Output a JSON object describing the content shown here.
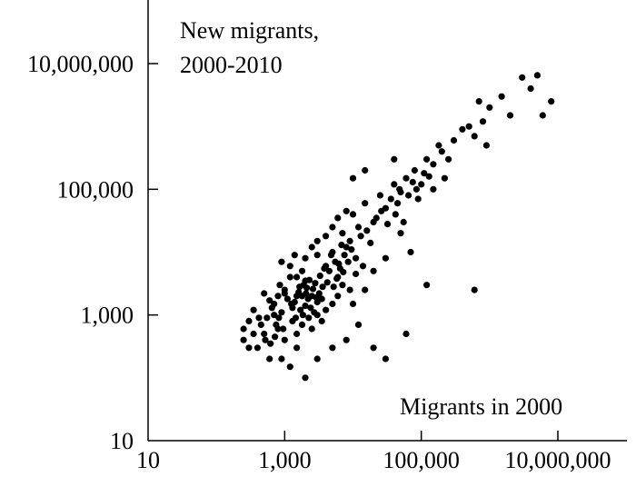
{
  "chart_data": {
    "type": "scatter",
    "scale": {
      "x": "log10",
      "y": "log10"
    },
    "xlim": [
      10,
      10000000
    ],
    "ylim": [
      10,
      10000000
    ],
    "x_ticks": [
      {
        "value": 10,
        "label": "10"
      },
      {
        "value": 1000,
        "label": "1,000"
      },
      {
        "value": 100000,
        "label": "100,000"
      },
      {
        "value": 10000000,
        "label": "10,000,000"
      }
    ],
    "y_ticks": [
      {
        "value": 10,
        "label": "10"
      },
      {
        "value": 1000,
        "label": "1,000"
      },
      {
        "value": 100000,
        "label": "100,000"
      },
      {
        "value": 10000000,
        "label": "10,000,000"
      }
    ],
    "ylabel_lines": [
      "New migrants,",
      "2000-2010"
    ],
    "xlabel": "Migrants in 2000",
    "grid": false,
    "marker_color": "#000000",
    "points": [
      [
        500,
        500
      ],
      [
        600,
        200
      ],
      [
        300,
        800
      ],
      [
        400,
        300
      ],
      [
        250,
        400
      ],
      [
        700,
        1500
      ],
      [
        550,
        900
      ],
      [
        800,
        600
      ],
      [
        1000,
        400
      ],
      [
        900,
        200
      ],
      [
        1200,
        150
      ],
      [
        1500,
        300
      ],
      [
        2000,
        100
      ],
      [
        3000,
        200
      ],
      [
        5000,
        300
      ],
      [
        8000,
        400
      ],
      [
        12000,
        700
      ],
      [
        20000,
        300
      ],
      [
        30000,
        200
      ],
      [
        60000,
        500
      ],
      [
        120000,
        3000
      ],
      [
        600000,
        2500
      ],
      [
        1000,
        2500
      ],
      [
        1200,
        6000
      ],
      [
        1500,
        4000
      ],
      [
        1300,
        800
      ],
      [
        2000,
        3500
      ],
      [
        2500,
        12000
      ],
      [
        3000,
        9000
      ],
      [
        4000,
        6000
      ],
      [
        3500,
        800
      ],
      [
        5000,
        10000
      ],
      [
        6000,
        4000
      ],
      [
        7000,
        20000
      ],
      [
        8000,
        12000
      ],
      [
        10000,
        40000
      ],
      [
        12000,
        25000
      ],
      [
        15000,
        60000
      ],
      [
        20000,
        30000
      ],
      [
        25000,
        80000
      ],
      [
        30000,
        50000
      ],
      [
        40000,
        120000
      ],
      [
        50000,
        90000
      ],
      [
        60000,
        150000
      ],
      [
        80000,
        200000
      ],
      [
        100000,
        120000
      ],
      [
        120000,
        300000
      ],
      [
        150000,
        250000
      ],
      [
        200000,
        400000
      ],
      [
        250000,
        300000
      ],
      [
        300000,
        600000
      ],
      [
        400000,
        900000
      ],
      [
        500000,
        1000000
      ],
      [
        600000,
        700000
      ],
      [
        800000,
        1200000
      ],
      [
        3000000,
        6000000
      ],
      [
        4000000,
        4000000
      ],
      [
        5000000,
        6500000
      ],
      [
        6000000,
        1500000
      ],
      [
        8000000,
        2500000
      ],
      [
        2000000,
        1500000
      ],
      [
        1500000,
        3000000
      ],
      [
        1000000,
        2000000
      ],
      [
        700000,
        2500000
      ],
      [
        900000,
        500000
      ],
      [
        15000,
        200000
      ],
      [
        10000,
        150000
      ],
      [
        40000,
        300000
      ],
      [
        50000,
        20000
      ],
      [
        70000,
        10000
      ],
      [
        20000,
        5000
      ],
      [
        15000,
        2500
      ],
      [
        10000,
        1500
      ],
      [
        30000,
        8000
      ],
      [
        45000,
        60000
      ],
      [
        55000,
        30000
      ],
      [
        90000,
        70000
      ],
      [
        150000,
        100000
      ],
      [
        180000,
        500000
      ],
      [
        220000,
        150000
      ],
      [
        1800,
        2000
      ],
      [
        2200,
        1800
      ],
      [
        2600,
        2600
      ],
      [
        2400,
        1300
      ],
      [
        3200,
        2200
      ],
      [
        2800,
        3200
      ],
      [
        2000,
        1400
      ],
      [
        1600,
        2300
      ],
      [
        3600,
        2800
      ],
      [
        1400,
        1600
      ],
      [
        1900,
        3000
      ],
      [
        2500,
        2000
      ],
      [
        3000,
        1600
      ],
      [
        2100,
        2700
      ],
      [
        2700,
        1100
      ],
      [
        1700,
        1200
      ],
      [
        2300,
        3600
      ],
      [
        3300,
        4200
      ],
      [
        2900,
        1900
      ],
      [
        1500,
        2000
      ],
      [
        4500,
        5000
      ],
      [
        5500,
        7000
      ],
      [
        6500,
        5500
      ],
      [
        7500,
        9000
      ],
      [
        9000,
        15000
      ],
      [
        11000,
        8000
      ],
      [
        13000,
        18000
      ],
      [
        16000,
        22000
      ],
      [
        18000,
        14000
      ],
      [
        22000,
        35000
      ],
      [
        26000,
        45000
      ],
      [
        32000,
        28000
      ],
      [
        36000,
        70000
      ],
      [
        42000,
        40000
      ],
      [
        48000,
        100000
      ],
      [
        65000,
        80000
      ],
      [
        75000,
        130000
      ],
      [
        85000,
        100000
      ],
      [
        110000,
        180000
      ],
      [
        130000,
        160000
      ],
      [
        4200,
        3300
      ],
      [
        5200,
        2800
      ],
      [
        6200,
        6500
      ],
      [
        4800,
        9000
      ],
      [
        3800,
        5500
      ],
      [
        7200,
        4800
      ],
      [
        8500,
        7000
      ],
      [
        9500,
        11000
      ],
      [
        6800,
        13000
      ],
      [
        5800,
        3800
      ],
      [
        1100,
        1800
      ],
      [
        1300,
        1300
      ],
      [
        900,
        1100
      ],
      [
        1000,
        2200
      ],
      [
        1250,
        1500
      ],
      [
        1450,
        900
      ],
      [
        1650,
        2800
      ],
      [
        1850,
        1000
      ],
      [
        2050,
        2200
      ],
      [
        2250,
        900
      ],
      [
        700,
        1000
      ],
      [
        800,
        2000
      ],
      [
        650,
        1300
      ],
      [
        450,
        700
      ],
      [
        350,
        1200
      ],
      [
        600,
        1700
      ],
      [
        500,
        2200
      ],
      [
        750,
        700
      ],
      [
        850,
        3000
      ],
      [
        950,
        600
      ],
      [
        300,
        300
      ],
      [
        350,
        500
      ],
      [
        250,
        600
      ],
      [
        420,
        900
      ],
      [
        520,
        400
      ],
      [
        620,
        350
      ],
      [
        720,
        450
      ],
      [
        820,
        900
      ],
      [
        1500,
        500
      ],
      [
        1800,
        700
      ],
      [
        2500,
        600
      ],
      [
        3000,
        1000
      ],
      [
        4000,
        1200
      ],
      [
        3500,
        1800
      ],
      [
        6000,
        2000
      ],
      [
        5000,
        1500
      ],
      [
        7000,
        3000
      ],
      [
        9000,
        2500
      ],
      [
        11000,
        4500
      ],
      [
        14000,
        6000
      ],
      [
        2000,
        8000
      ],
      [
        1800,
        5000
      ],
      [
        1200,
        4000
      ],
      [
        900,
        7000
      ],
      [
        1400,
        9000
      ],
      [
        3000,
        15000
      ],
      [
        5000,
        25000
      ],
      [
        4000,
        18000
      ],
      [
        6000,
        35000
      ],
      [
        8000,
        45000
      ]
    ]
  }
}
